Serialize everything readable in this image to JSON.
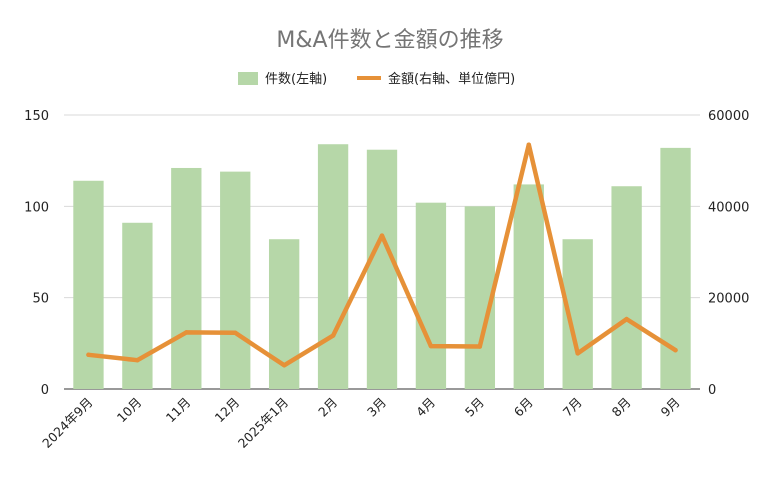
{
  "chart_data": {
    "type": "bar",
    "title": "M&A件数と金額の推移",
    "categories": [
      "2024年9月",
      "10月",
      "11月",
      "12月",
      "2025年1月",
      "2月",
      "3月",
      "4月",
      "5月",
      "6月",
      "7月",
      "8月",
      "9月"
    ],
    "series": [
      {
        "name": "件数(左軸)",
        "type": "bar",
        "axis": "left",
        "color": "#b6d7a8",
        "values": [
          114,
          91,
          121,
          119,
          82,
          134,
          131,
          102,
          100,
          112,
          82,
          111,
          132
        ]
      },
      {
        "name": "金額(右軸、単位億円)",
        "type": "line",
        "axis": "right",
        "color": "#e69138",
        "values": [
          7500,
          6300,
          12400,
          12300,
          5200,
          11700,
          33600,
          9400,
          9300,
          53500,
          7800,
          15300,
          8500
        ]
      }
    ],
    "y_left": {
      "range": [
        0,
        150
      ],
      "ticks": [
        0,
        50,
        100,
        150
      ]
    },
    "y_right": {
      "range": [
        0,
        60000
      ],
      "ticks": [
        0,
        20000,
        40000,
        60000
      ]
    },
    "grid": true,
    "legend_position": "top-center"
  }
}
